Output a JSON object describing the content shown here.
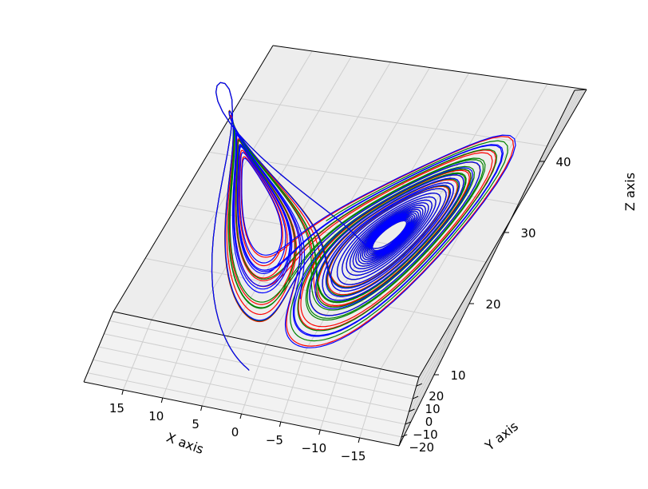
{
  "chart_data": {
    "type": "line3d",
    "title": "",
    "xlabel": "X axis",
    "ylabel": "Y axis",
    "zlabel": "Z axis",
    "xticks": [
      15,
      10,
      5,
      0,
      -5,
      -10,
      -15
    ],
    "xtick_labels": [
      "15",
      "10",
      "5",
      "0",
      "−5",
      "−10",
      "−15"
    ],
    "yticks": [
      -20,
      -10,
      0,
      10,
      20
    ],
    "ytick_labels": [
      "−20",
      "−10",
      "0",
      "10",
      "20"
    ],
    "zticks": [
      10,
      20,
      30,
      40
    ],
    "ztick_labels": [
      "10",
      "20",
      "30",
      "40"
    ],
    "xlim": [
      -20,
      20
    ],
    "ylim": [
      -27,
      27
    ],
    "zlim": [
      0,
      50
    ],
    "grid": true,
    "system": "Lorenz attractor, sigma=10, rho=28, beta=8/3",
    "series": [
      {
        "color": "#ff0000",
        "x0": 1.0,
        "y0": 1.0,
        "z0": 1.0
      },
      {
        "color": "#008000",
        "x0": 1.01,
        "y0": 1.0,
        "z0": 1.0
      },
      {
        "color": "#0000ff",
        "x0": 1.02,
        "y0": 1.0,
        "z0": 1.0
      }
    ]
  }
}
